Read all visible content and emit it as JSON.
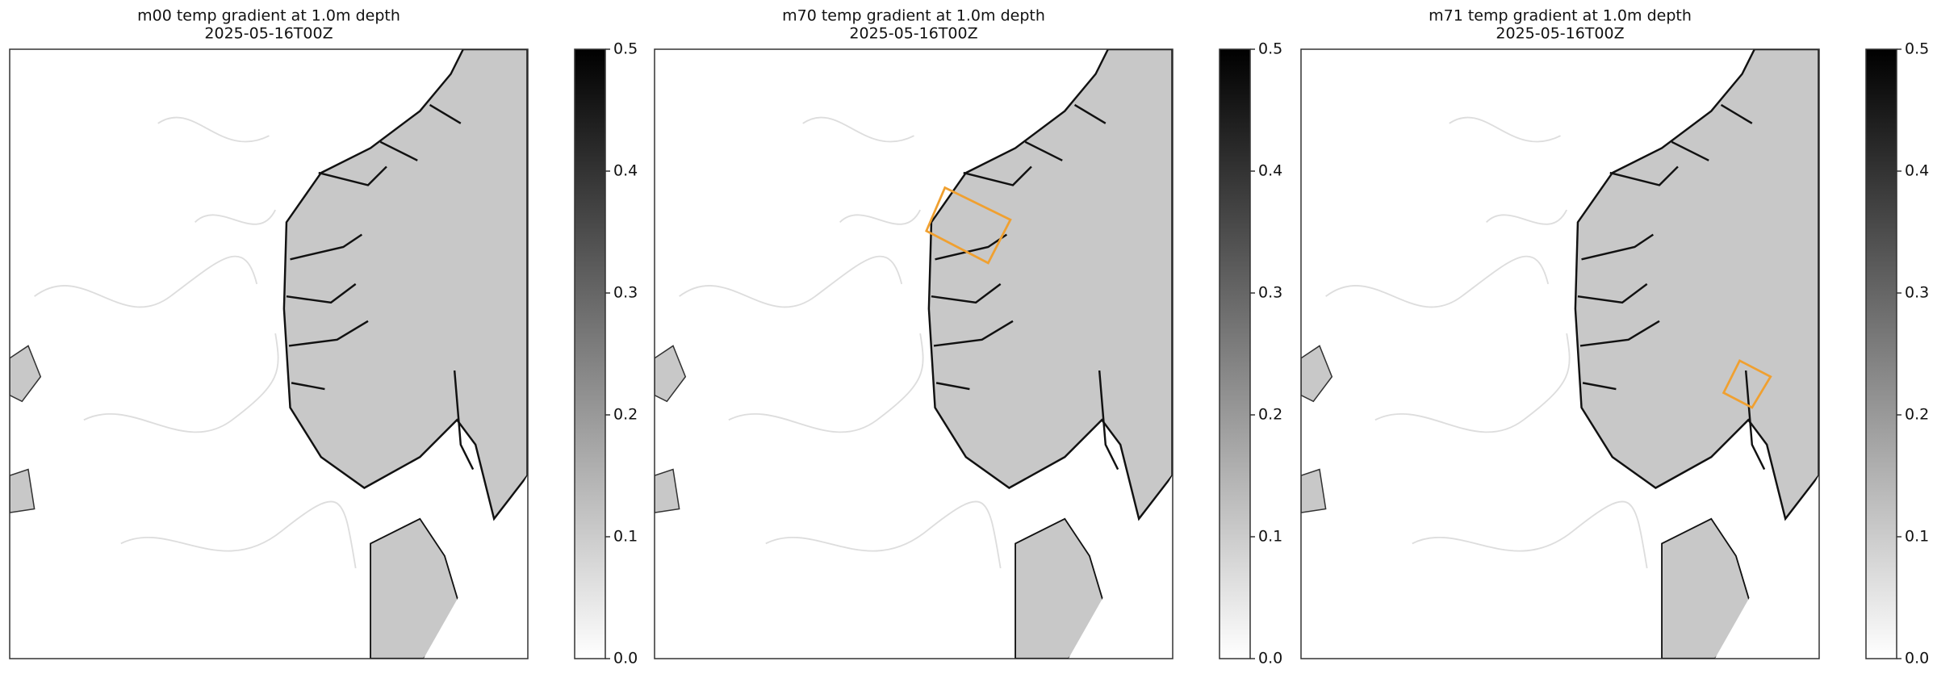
{
  "panels": [
    {
      "title": "m00 temp gradient at 1.0m depth",
      "subtitle": "2025-05-16T00Z",
      "colorbar": {
        "lim": [
          0,
          0.5
        ],
        "ticks": [
          {
            "value": 0,
            "label": "0.0"
          },
          0.1,
          0.2,
          0.3,
          0.4,
          0.5
        ]
      }
    },
    {
      "title": "m70 temp gradient at 1.0m depth",
      "subtitle": "2025-05-16T00Z",
      "colorbar": {
        "lim": [
          0,
          0.5
        ],
        "ticks": [
          {
            "value": 0,
            "label": "0.0"
          },
          0.1,
          0.2,
          0.3,
          0.4,
          0.5
        ]
      }
    },
    {
      "title": "m71 temp gradient at 1.0m depth",
      "subtitle": "2025-05-16T00Z",
      "colorbar": {
        "lim": [
          0,
          0.5
        ],
        "ticks": [
          {
            "value": 0,
            "label": "0.0"
          },
          0.1,
          0.2,
          0.3,
          0.4,
          0.5
        ]
      }
    }
  ]
}
